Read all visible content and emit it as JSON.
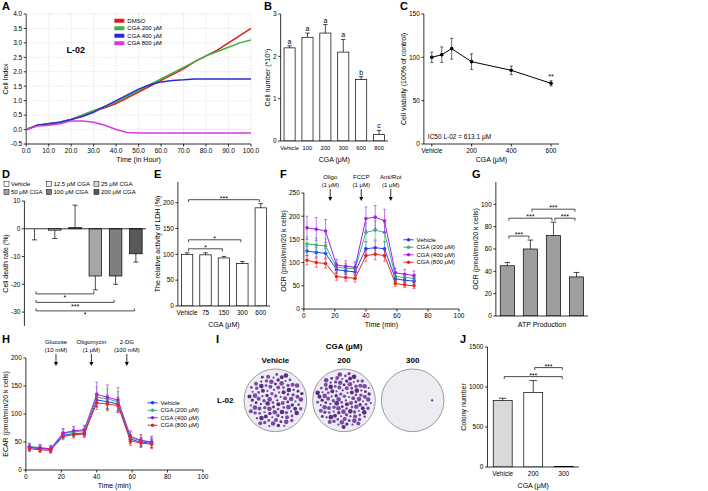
{
  "chart_data": [
    {
      "letter": "A",
      "type": "line",
      "title": "L-02",
      "x_label": "Time (in Hour)",
      "y_label": "Cell Index",
      "x": [
        0,
        5,
        10,
        15,
        20,
        25,
        30,
        35,
        40,
        45,
        50,
        55,
        60,
        65,
        70,
        75,
        80,
        85,
        90,
        95,
        100
      ],
      "series": [
        {
          "name": "DMSO",
          "color": "#e31a1c",
          "values": [
            0,
            0.15,
            0.2,
            0.25,
            0.35,
            0.5,
            0.65,
            0.75,
            0.9,
            1.1,
            1.3,
            1.5,
            1.7,
            1.9,
            2.1,
            2.35,
            2.55,
            2.75,
            3.0,
            3.25,
            3.5
          ]
        },
        {
          "name": "CGA 200 μM",
          "color": "#3cb043",
          "values": [
            0,
            0.15,
            0.2,
            0.25,
            0.35,
            0.5,
            0.65,
            0.8,
            0.95,
            1.15,
            1.35,
            1.55,
            1.75,
            1.95,
            2.15,
            2.35,
            2.55,
            2.7,
            2.85,
            3.0,
            3.1
          ]
        },
        {
          "name": "CGA 400 μM",
          "color": "#2b2bd6",
          "values": [
            0,
            0.15,
            0.2,
            0.25,
            0.35,
            0.45,
            0.6,
            0.8,
            1.0,
            1.2,
            1.4,
            1.55,
            1.65,
            1.7,
            1.72,
            1.75,
            1.75,
            1.75,
            1.75,
            1.75,
            1.75
          ]
        },
        {
          "name": "CGA 800 μM",
          "color": "#d63adf",
          "values": [
            0,
            0.12,
            0.15,
            0.2,
            0.3,
            0.3,
            0.25,
            0.15,
            0.0,
            -0.1,
            -0.12,
            -0.12,
            -0.12,
            -0.12,
            -0.12,
            -0.12,
            -0.12,
            -0.12,
            -0.12,
            -0.12,
            -0.12
          ]
        }
      ],
      "xlim": [
        0,
        100
      ],
      "xticks": [
        {
          "value": 0,
          "label": "0.0"
        },
        {
          "value": 10,
          "label": "10.0"
        },
        {
          "value": 20,
          "label": "20.0"
        },
        {
          "value": 30,
          "label": "30.0"
        },
        {
          "value": 40,
          "label": "40.0"
        },
        {
          "value": 50,
          "label": "50.0"
        },
        {
          "value": 60,
          "label": "60.0"
        },
        {
          "value": 70,
          "label": "70.0"
        },
        {
          "value": 80,
          "label": "80.0"
        },
        {
          "value": 90,
          "label": "90.0"
        },
        {
          "value": 100,
          "label": "100.0"
        }
      ],
      "ylim": [
        -0.5,
        4
      ],
      "yticks": [
        -0.5,
        {
          "value": 0,
          "label": "0.0"
        },
        0.5,
        {
          "value": 1,
          "label": "1.0"
        },
        1.5,
        {
          "value": 2,
          "label": "2.0"
        },
        2.5,
        {
          "value": 3,
          "label": "3.0"
        },
        3.5,
        {
          "value": 4,
          "label": "4.0"
        }
      ],
      "grid": true,
      "legend": "top"
    },
    {
      "letter": "B",
      "type": "bar",
      "x_label": "CGA (μM)",
      "y_label": "Cell number (*10⁵)",
      "categories": [
        "Vehicle",
        "100",
        "200",
        "300",
        "600",
        "800"
      ],
      "values": [
        2.2,
        2.45,
        2.55,
        2.1,
        1.45,
        0.15
      ],
      "errors": [
        0.05,
        0.1,
        0.2,
        0.3,
        0.07,
        0.1
      ],
      "annotations": [
        "a",
        "a",
        "a",
        "a",
        "b",
        "c"
      ],
      "color": "#ffffff",
      "ylim": [
        0,
        3
      ],
      "yticks": [
        0,
        1,
        2,
        3
      ]
    },
    {
      "letter": "C",
      "type": "line",
      "x_label": "CGA (μM)",
      "y_label": "Cell viability (100% of control)",
      "x": [
        0,
        50,
        100,
        200,
        400,
        600
      ],
      "values": [
        100,
        103,
        110,
        95,
        85,
        70
      ],
      "errors": [
        6,
        9,
        12,
        9,
        5,
        3
      ],
      "color": "#000000",
      "marker": "circle",
      "xlim": [
        -40,
        640
      ],
      "xticks": [
        {
          "value": 0,
          "label": "Vehicle"
        },
        200,
        400,
        600
      ],
      "ylim": [
        0,
        150
      ],
      "yticks": [
        0,
        50,
        100,
        150
      ],
      "annotations": [
        {
          "text": "**",
          "x": 600
        },
        {
          "text": "IC50 L-02 = 613.1 μM"
        }
      ]
    },
    {
      "letter": "D",
      "type": "bar",
      "y_label": "Cell death rate (%)",
      "categories": [
        "Vehicle",
        "12.5 μM CGA",
        "25 μM CGA",
        "50 μM CGA",
        "100 μM CGA",
        "200 μM CGA"
      ],
      "values": [
        0,
        -0.5,
        0.5,
        -17,
        -17,
        -9
      ],
      "errors": [
        4,
        3,
        8,
        5,
        3,
        3
      ],
      "colors": [
        "#ffffff",
        "#eeeeee",
        "#d9d9d9",
        "#a6a6a6",
        "#7f7f7f",
        "#595959"
      ],
      "tick_labels": "y",
      "legend": "top",
      "ylim": [
        -35,
        10
      ],
      "yticks": [
        -30,
        -20,
        -10,
        0,
        10
      ],
      "brackets": [
        {
          "from": 0,
          "to": 3,
          "label": "*"
        },
        {
          "from": 0,
          "to": 4,
          "label": "***"
        },
        {
          "from": 0,
          "to": 5,
          "label": "*"
        }
      ]
    },
    {
      "letter": "E",
      "type": "bar",
      "x_label": "CGA (μM)",
      "y_label": "The relative activity of LDH (%)",
      "categories": [
        "Vehicle",
        "75",
        "150",
        "300",
        "600"
      ],
      "values": [
        100,
        99,
        93,
        82,
        190
      ],
      "errors": [
        3,
        4,
        3,
        4,
        8
      ],
      "color": "#ffffff",
      "ylim": [
        0,
        240
      ],
      "yticks": [
        0,
        50,
        100,
        150,
        200
      ],
      "brackets": [
        {
          "from": 0,
          "to": 2,
          "label": "*"
        },
        {
          "from": 0,
          "to": 3,
          "label": "*"
        },
        {
          "from": 0,
          "to": 4,
          "label": "***"
        }
      ]
    },
    {
      "letter": "F",
      "type": "line",
      "x_label": "Time (min)",
      "y_label": "OCR (pmol/min/20 k cells)",
      "x": [
        2,
        8,
        14,
        21,
        27,
        33,
        40,
        46,
        52,
        59,
        65,
        71
      ],
      "series": [
        {
          "name": "Vehicle",
          "color": "#1f3fff",
          "values": [
            125,
            122,
            120,
            85,
            82,
            80,
            130,
            132,
            130,
            65,
            62,
            60
          ],
          "errors": [
            10,
            10,
            10,
            8,
            8,
            8,
            15,
            15,
            15,
            6,
            6,
            6
          ]
        },
        {
          "name": "CGA (200 μM)",
          "color": "#3cb371",
          "values": [
            140,
            138,
            136,
            90,
            88,
            87,
            165,
            170,
            165,
            70,
            68,
            66
          ],
          "errors": [
            15,
            15,
            15,
            10,
            10,
            10,
            20,
            20,
            20,
            8,
            8,
            8
          ]
        },
        {
          "name": "CGA (400 μM)",
          "color": "#a020f0",
          "values": [
            175,
            172,
            168,
            95,
            92,
            90,
            195,
            198,
            190,
            78,
            75,
            72
          ],
          "errors": [
            25,
            25,
            25,
            12,
            12,
            12,
            25,
            25,
            25,
            10,
            10,
            10
          ]
        },
        {
          "name": "CGA (800 μM)",
          "color": "#e8251f",
          "values": [
            105,
            100,
            98,
            70,
            68,
            66,
            115,
            118,
            115,
            55,
            52,
            50
          ],
          "errors": [
            10,
            10,
            10,
            8,
            8,
            8,
            12,
            12,
            12,
            6,
            6,
            6
          ]
        }
      ],
      "marker": "circle",
      "xlim": [
        0,
        100
      ],
      "xticks": [
        0,
        20,
        40,
        60,
        80,
        100
      ],
      "ylim": [
        0,
        250
      ],
      "yticks": [
        0,
        50,
        100,
        150,
        200,
        250
      ],
      "legend": "right",
      "annotations": [
        {
          "lines": [
            "Oligo",
            "(1 μM)"
          ],
          "x": 17
        },
        {
          "lines": [
            "FCCP",
            "(1 μM)"
          ],
          "x": 37
        },
        {
          "lines": [
            "Anti/Rot",
            "(1 μM)"
          ],
          "x": 56
        }
      ]
    },
    {
      "letter": "G",
      "type": "bar",
      "x_label": "ATP Production",
      "y_label": "OCR (pmol/min/20 k cells)",
      "categories": [
        null,
        null,
        null,
        null
      ],
      "values": [
        45,
        60,
        72,
        35
      ],
      "errors": [
        3,
        8,
        12,
        4
      ],
      "color": "#9e9e9e",
      "tick_labels": "y",
      "ylim": [
        0,
        120
      ],
      "yticks": [
        0,
        20,
        40,
        60,
        80,
        100
      ],
      "brackets": [
        {
          "from": 0,
          "to": 1,
          "label": "***"
        },
        {
          "from": 0,
          "to": 2,
          "label": "***"
        },
        {
          "from": 2,
          "to": 3,
          "label": "***"
        },
        {
          "from": 1,
          "to": 3,
          "label": "***"
        }
      ]
    },
    {
      "letter": "H",
      "type": "line",
      "x_label": "Time (min)",
      "y_label": "ECAR (pmol/min/20 k cells)",
      "x": [
        2,
        8,
        14,
        21,
        27,
        33,
        40,
        46,
        52,
        59,
        65,
        71
      ],
      "series": [
        {
          "name": "Vehicle",
          "color": "#1f3fff",
          "values": [
            40,
            38,
            37,
            62,
            65,
            66,
            125,
            122,
            118,
            55,
            50,
            48
          ],
          "errors": [
            5,
            5,
            5,
            6,
            6,
            6,
            12,
            12,
            12,
            8,
            8,
            8
          ]
        },
        {
          "name": "CGA (200 μM)",
          "color": "#3cb371",
          "values": [
            42,
            40,
            38,
            65,
            68,
            70,
            130,
            127,
            122,
            58,
            52,
            50
          ],
          "errors": [
            6,
            6,
            6,
            8,
            8,
            8,
            18,
            18,
            18,
            10,
            10,
            10
          ]
        },
        {
          "name": "CGA (400 μM)",
          "color": "#a020f0",
          "values": [
            41,
            39,
            38,
            66,
            70,
            72,
            135,
            130,
            125,
            60,
            53,
            50
          ],
          "errors": [
            6,
            6,
            6,
            8,
            8,
            8,
            22,
            22,
            22,
            10,
            10,
            10
          ]
        },
        {
          "name": "CGA (800 μM)",
          "color": "#e8251f",
          "values": [
            38,
            36,
            35,
            60,
            63,
            64,
            120,
            118,
            115,
            52,
            48,
            46
          ],
          "errors": [
            5,
            5,
            5,
            6,
            6,
            6,
            12,
            12,
            12,
            8,
            8,
            8
          ]
        }
      ],
      "marker": "circle",
      "xlim": [
        0,
        100
      ],
      "xticks": [
        0,
        20,
        40,
        60,
        80,
        100
      ],
      "ylim": [
        0,
        200
      ],
      "yticks": [
        0,
        50,
        100,
        150,
        200
      ],
      "legend": "right",
      "annotations": [
        {
          "lines": [
            "Glucose",
            "(10 mM)"
          ],
          "x": 17
        },
        {
          "lines": [
            "Oligomycin",
            "(1 μM)"
          ],
          "x": 37
        },
        {
          "lines": [
            "2-DG",
            "(100 mM)"
          ],
          "x": 57
        }
      ]
    },
    {
      "letter": "I",
      "type": "image",
      "title": "CGA (μM)",
      "row_label": "L-02",
      "categories": [
        "Vehicle",
        "200",
        "300"
      ]
    },
    {
      "letter": "J",
      "type": "bar",
      "x_label": "CGA (μM)",
      "y_label": "Colony number",
      "categories": [
        "Vehicle",
        "200",
        "300"
      ],
      "values": [
        830,
        930,
        5
      ],
      "errors": [
        30,
        150,
        2
      ],
      "colors": [
        "#d9d9d9",
        "#ffffff",
        "#ffffff"
      ],
      "ylim": [
        0,
        1500
      ],
      "yticks": [
        0,
        500,
        1000,
        1500
      ],
      "brackets": [
        {
          "from": 0,
          "to": 2,
          "label": "***"
        },
        {
          "from": 1,
          "to": 2,
          "label": "***"
        }
      ]
    }
  ]
}
